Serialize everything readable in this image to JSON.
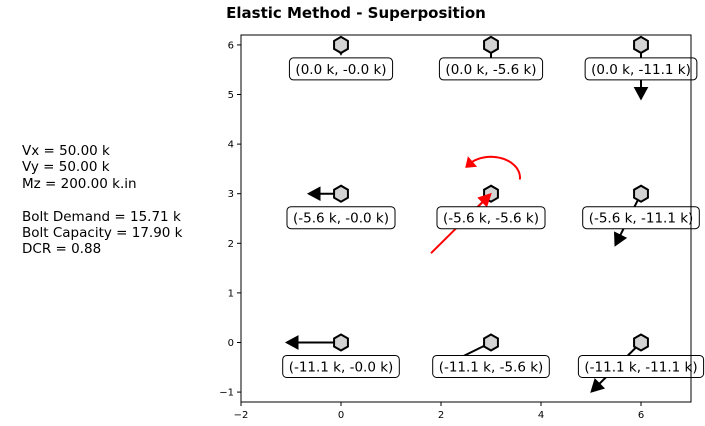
{
  "chart_data": {
    "type": "scatter",
    "title": "Elastic Method - Superposition",
    "xlabel": "",
    "ylabel": "",
    "xlim": [
      -2,
      7
    ],
    "ylim": [
      -1.2,
      6.2
    ],
    "xticks": [
      "−2",
      "0",
      "2",
      "4",
      "6"
    ],
    "yticks": [
      "−1",
      "0",
      "1",
      "2",
      "3",
      "4",
      "5",
      "6"
    ],
    "grid": false,
    "bolts": [
      {
        "x": 0,
        "y": 6,
        "label": "(0.0 k, -0.0 k)",
        "arrow_dx": 0.0,
        "arrow_dy": -0.2
      },
      {
        "x": 3,
        "y": 6,
        "label": "(0.0 k, -5.6 k)",
        "arrow_dx": 0.0,
        "arrow_dy": -0.66
      },
      {
        "x": 6,
        "y": 6,
        "label": "(0.0 k, -11.1 k)",
        "arrow_dx": 0.0,
        "arrow_dy": -1.1
      },
      {
        "x": 0,
        "y": 3,
        "label": "(-5.6 k, -0.0 k)",
        "arrow_dx": -0.66,
        "arrow_dy": 0.0
      },
      {
        "x": 3,
        "y": 3,
        "label": "(-5.6 k, -5.6 k)",
        "arrow_dx": -0.6,
        "arrow_dy": -0.6
      },
      {
        "x": 6,
        "y": 3,
        "label": "(-5.6 k, -11.1 k)",
        "arrow_dx": -0.52,
        "arrow_dy": -1.05
      },
      {
        "x": 0,
        "y": 0,
        "label": "(-11.1 k, -0.0 k)",
        "arrow_dx": -1.1,
        "arrow_dy": 0.0
      },
      {
        "x": 3,
        "y": 0,
        "label": "(-11.1 k, -5.6 k)",
        "arrow_dx": -1.05,
        "arrow_dy": -0.52
      },
      {
        "x": 6,
        "y": 0,
        "label": "(-11.1 k, -11.1 k)",
        "arrow_dx": -1.0,
        "arrow_dy": -1.0
      }
    ],
    "applied_load": {
      "from": [
        1.8,
        1.8
      ],
      "to": [
        3.0,
        3.0
      ],
      "color": "#ff0000"
    },
    "moment": {
      "center": [
        3,
        3
      ],
      "color": "#ff0000",
      "direction": "counterclockwise"
    }
  },
  "summary": {
    "vx": "Vx = 50.00 k",
    "vy": "Vy = 50.00 k",
    "mz": "Mz = 200.00 k.in",
    "bolt_demand": "Bolt Demand = 15.71 k",
    "bolt_capacity": "Bolt Capacity = 17.90 k",
    "dcr": "DCR = 0.88"
  }
}
